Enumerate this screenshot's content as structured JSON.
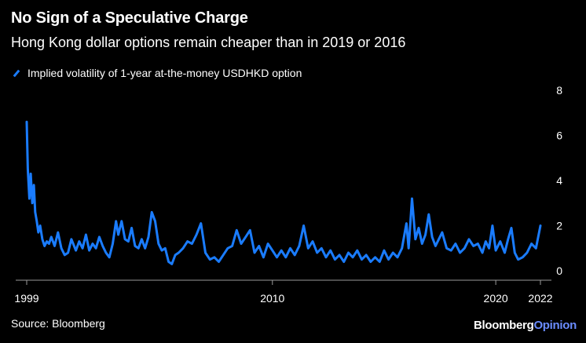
{
  "header": {
    "title": "No Sign of a Speculative Charge",
    "subtitle": "Hong Kong dollar options remain cheaper than in 2019 or 2016"
  },
  "legend": {
    "label": "Implied volatility of 1-year at-the-money USDHKD option"
  },
  "footer": {
    "source": "Source: Bloomberg",
    "brand_main": "Bloomberg",
    "brand_accent": "Opinion"
  },
  "colors": {
    "series": "#1a7cff",
    "background": "#000000",
    "text": "#ffffff",
    "brand_accent": "#6a8cff"
  },
  "chart_data": {
    "type": "line",
    "title": "No Sign of a Speculative Charge",
    "subtitle": "Hong Kong dollar options remain cheaper than in 2019 or 2016",
    "xlabel": "",
    "ylabel": "",
    "xlim": [
      1999,
      2022
    ],
    "ylim": [
      0,
      8
    ],
    "x_ticks": [
      1999,
      2010,
      2020,
      2022
    ],
    "y_ticks": [
      0,
      2,
      4,
      6,
      8
    ],
    "grid": false,
    "series": [
      {
        "name": "Implied volatility of 1-year at-the-money USDHKD option",
        "color": "#1a7cff",
        "x": [
          1999.0,
          1999.05,
          1999.12,
          1999.18,
          1999.25,
          1999.32,
          1999.38,
          1999.45,
          1999.52,
          1999.6,
          1999.7,
          1999.8,
          1999.9,
          2000.0,
          2000.1,
          2000.25,
          2000.4,
          2000.55,
          2000.7,
          2000.85,
          2001.0,
          2001.2,
          2001.35,
          2001.5,
          2001.65,
          2001.8,
          2001.95,
          2002.1,
          2002.25,
          2002.4,
          2002.55,
          2002.7,
          2002.85,
          2003.0,
          2003.1,
          2003.25,
          2003.4,
          2003.55,
          2003.7,
          2003.85,
          2004.0,
          2004.15,
          2004.3,
          2004.45,
          2004.6,
          2004.75,
          2004.9,
          2005.05,
          2005.2,
          2005.35,
          2005.5,
          2005.65,
          2005.8,
          2006.0,
          2006.2,
          2006.4,
          2006.6,
          2006.8,
          2007.0,
          2007.2,
          2007.4,
          2007.6,
          2007.8,
          2008.0,
          2008.2,
          2008.4,
          2008.6,
          2008.8,
          2009.0,
          2009.2,
          2009.4,
          2009.6,
          2009.8,
          2010.0,
          2010.2,
          2010.4,
          2010.6,
          2010.8,
          2011.0,
          2011.2,
          2011.4,
          2011.6,
          2011.8,
          2012.0,
          2012.2,
          2012.4,
          2012.6,
          2012.8,
          2013.0,
          2013.2,
          2013.4,
          2013.6,
          2013.8,
          2014.0,
          2014.2,
          2014.4,
          2014.6,
          2014.8,
          2015.0,
          2015.2,
          2015.4,
          2015.6,
          2015.8,
          2016.0,
          2016.1,
          2016.25,
          2016.4,
          2016.55,
          2016.7,
          2016.85,
          2017.0,
          2017.15,
          2017.3,
          2017.45,
          2017.6,
          2017.8,
          2018.0,
          2018.2,
          2018.4,
          2018.6,
          2018.8,
          2019.0,
          2019.2,
          2019.4,
          2019.55,
          2019.7,
          2019.85,
          2020.0,
          2020.2,
          2020.4,
          2020.55,
          2020.7,
          2020.85,
          2021.0,
          2021.2,
          2021.4,
          2021.6,
          2021.8,
          2022.0
        ],
        "values": [
          6.6,
          4.5,
          3.2,
          4.3,
          3.0,
          3.8,
          2.6,
          2.2,
          1.7,
          2.0,
          1.4,
          1.1,
          1.3,
          1.2,
          1.5,
          1.1,
          1.7,
          1.0,
          0.7,
          0.8,
          1.4,
          0.9,
          1.3,
          1.0,
          1.6,
          0.9,
          1.2,
          1.0,
          1.5,
          1.1,
          0.8,
          0.6,
          1.2,
          2.2,
          1.6,
          2.2,
          1.4,
          1.3,
          1.9,
          1.1,
          1.0,
          1.4,
          1.0,
          1.5,
          2.6,
          2.2,
          1.2,
          0.9,
          1.0,
          0.4,
          0.3,
          0.7,
          0.8,
          1.0,
          1.3,
          1.2,
          1.6,
          2.1,
          0.8,
          0.5,
          0.6,
          0.4,
          0.7,
          1.0,
          1.1,
          1.8,
          1.2,
          1.5,
          1.8,
          0.8,
          1.1,
          0.6,
          1.2,
          0.9,
          0.6,
          0.9,
          0.6,
          1.0,
          0.7,
          1.1,
          2.0,
          1.0,
          1.3,
          0.8,
          1.0,
          0.6,
          0.9,
          0.5,
          0.7,
          0.4,
          0.8,
          0.6,
          0.9,
          0.5,
          0.7,
          0.4,
          0.6,
          0.4,
          0.9,
          0.5,
          0.8,
          0.6,
          1.0,
          2.1,
          1.0,
          3.2,
          1.4,
          1.9,
          1.2,
          1.6,
          2.5,
          1.5,
          1.1,
          1.4,
          1.7,
          1.0,
          0.9,
          1.2,
          0.8,
          1.0,
          1.4,
          1.1,
          1.2,
          0.8,
          1.3,
          1.0,
          2.0,
          0.9,
          1.3,
          0.8,
          1.4,
          1.9,
          0.8,
          0.5,
          0.6,
          0.8,
          1.2,
          1.0,
          2.0
        ]
      }
    ]
  }
}
